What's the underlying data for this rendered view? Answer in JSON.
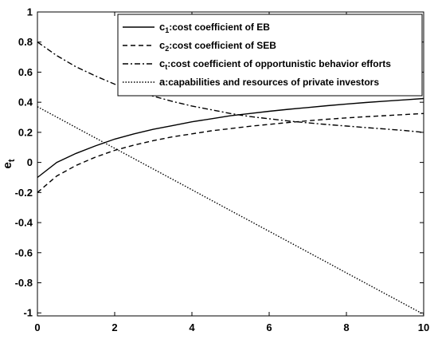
{
  "chart_data": {
    "type": "line",
    "title": "",
    "xlabel": "",
    "ylabel": "e",
    "ylabel_sub": "t",
    "xlim": [
      0,
      10
    ],
    "ylim": [
      -1.02,
      1
    ],
    "xticks": [
      0,
      2,
      4,
      6,
      8,
      10
    ],
    "yticks": [
      -1,
      -0.8,
      -0.6,
      -0.4,
      -0.2,
      0,
      0.2,
      0.4,
      0.6,
      0.8,
      1
    ],
    "xtick_labels": [
      "0",
      "2",
      "4",
      "6",
      "8",
      "10"
    ],
    "ytick_labels": [
      "-1",
      "-0.8",
      "-0.6",
      "-0.4",
      "-0.2",
      "0",
      "0.2",
      "0.4",
      "0.6",
      "0.8",
      "1"
    ],
    "grid": false,
    "legend_position": "top-right",
    "x": [
      0,
      0.5,
      1,
      1.5,
      2,
      2.5,
      3,
      3.5,
      4,
      4.5,
      5,
      5.5,
      6,
      6.5,
      7,
      7.5,
      8,
      8.5,
      9,
      9.5,
      10
    ],
    "series": [
      {
        "name_prefix": "c",
        "name_sub": "1",
        "name_rest": ":cost coefficient of EB",
        "style": "solid",
        "values": [
          -0.1,
          0.0,
          0.06,
          0.11,
          0.155,
          0.19,
          0.22,
          0.245,
          0.27,
          0.29,
          0.31,
          0.325,
          0.34,
          0.353,
          0.365,
          0.377,
          0.388,
          0.398,
          0.407,
          0.416,
          0.425
        ]
      },
      {
        "name_prefix": "c",
        "name_sub": "2",
        "name_rest": ":cost coefficient of SEB",
        "style": "dashed",
        "values": [
          -0.2,
          -0.09,
          -0.02,
          0.035,
          0.08,
          0.115,
          0.145,
          0.17,
          0.19,
          0.21,
          0.225,
          0.24,
          0.253,
          0.265,
          0.277,
          0.287,
          0.296,
          0.304,
          0.311,
          0.318,
          0.325
        ]
      },
      {
        "name_prefix": "c",
        "name_sub": "t",
        "name_rest": ":cost coefficient of opportunistic behavior efforts",
        "style": "dashdot",
        "values": [
          0.8,
          0.71,
          0.635,
          0.575,
          0.52,
          0.475,
          0.44,
          0.405,
          0.375,
          0.35,
          0.325,
          0.305,
          0.29,
          0.275,
          0.263,
          0.252,
          0.242,
          0.232,
          0.222,
          0.212,
          0.2
        ]
      },
      {
        "name_prefix": "a",
        "name_sub": "",
        "name_rest": ":capabilities and resources of private investors",
        "style": "dotted",
        "values": [
          0.37,
          0.301,
          0.232,
          0.163,
          0.094,
          0.025,
          -0.044,
          -0.113,
          -0.182,
          -0.251,
          -0.32,
          -0.389,
          -0.458,
          -0.527,
          -0.596,
          -0.665,
          -0.734,
          -0.803,
          -0.872,
          -0.941,
          -1.01
        ]
      }
    ]
  }
}
